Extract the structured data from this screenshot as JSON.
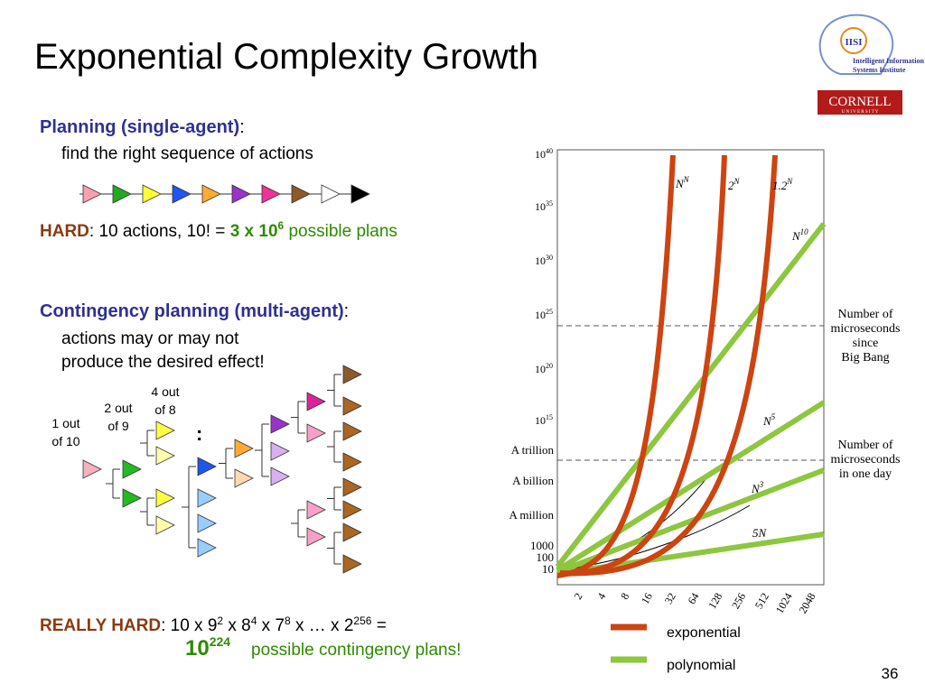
{
  "title": "Exponential Complexity Growth",
  "logo": {
    "line1": "Intelligent Information",
    "line2": "Systems Institute",
    "cornell": "CORNELL",
    "university": "U N I V E R S I T Y"
  },
  "planning": {
    "heading": "Planning (single-agent)",
    "colon": ":",
    "desc": "find the right sequence of actions",
    "hard_label": "HARD",
    "hard_text": ":  10 actions, 10! = ",
    "hard_value": "3 x 10",
    "hard_exp": "6",
    "hard_tail": " possible plans"
  },
  "contingency": {
    "heading": "Contingency planning (multi-agent)",
    "colon": ":",
    "line1": "actions may or may not",
    "line2": "produce the desired effect!"
  },
  "tree_labels": [
    [
      "1 out",
      "of 10"
    ],
    [
      "2 out",
      "of 9"
    ],
    [
      "4 out",
      "of 8"
    ]
  ],
  "ellipsis": ":",
  "really_hard": {
    "label": "REALLY HARD",
    "parts": [
      {
        "text": ":  10 x 9",
        "sup": "2"
      },
      {
        "text": " x 8",
        "sup": "4"
      },
      {
        "text": " x 7",
        "sup": "8"
      },
      {
        "text": " x … x 2",
        "sup": "256"
      },
      {
        "text": " ="
      }
    ],
    "result_base": "10",
    "result_exp": "224",
    "result_text": "possible contingency plans!"
  },
  "chart": {
    "power_ticks": [
      {
        "base": "10",
        "exp": "40"
      },
      {
        "base": "10",
        "exp": "35"
      },
      {
        "base": "10",
        "exp": "30"
      },
      {
        "base": "10",
        "exp": "25"
      },
      {
        "base": "10",
        "exp": "20"
      },
      {
        "base": "10",
        "exp": "15"
      }
    ],
    "word_ticks": [
      "A trillion",
      "A billion",
      "A million",
      "1000",
      "100",
      "10"
    ],
    "xticks": [
      2,
      4,
      8,
      16,
      32,
      64,
      128,
      256,
      512,
      1024,
      2048
    ],
    "curves": [
      {
        "base": "N",
        "exp": "N"
      },
      {
        "base": "2",
        "exp": "N"
      },
      {
        "base": "1.2",
        "exp": "N"
      },
      {
        "base": "N",
        "exp": "10"
      },
      {
        "base": "N",
        "exp": "5"
      },
      {
        "base": "N",
        "exp": "3"
      },
      {
        "base": "5N",
        "exp": ""
      }
    ],
    "note_bigbang": [
      "Number of",
      "microseconds",
      "since",
      "Big Bang"
    ],
    "note_day": [
      "Number of",
      "microseconds",
      "in one day"
    ]
  },
  "legend": [
    "exponential",
    "polynomial"
  ],
  "page_number": "36"
}
